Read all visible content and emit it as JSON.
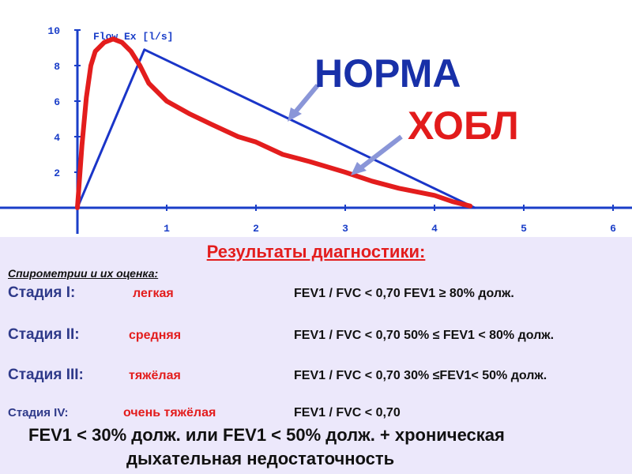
{
  "chart_data": {
    "type": "line",
    "title": "Flow Ex [l/s]",
    "xlabel": "",
    "ylabel": "",
    "xlim": [
      0,
      6
    ],
    "ylim": [
      0,
      10
    ],
    "x_ticks": [
      1,
      2,
      3,
      4,
      5,
      6
    ],
    "y_ticks": [
      2,
      4,
      6,
      8,
      10
    ],
    "grid": false,
    "series": [
      {
        "name": "НОРМА",
        "color": "#1a35c8",
        "x": [
          0,
          0.75,
          4.45
        ],
        "y": [
          0,
          8.9,
          0
        ]
      },
      {
        "name": "ХОБЛ",
        "color": "#e31d1d",
        "x": [
          0,
          0.05,
          0.1,
          0.15,
          0.2,
          0.3,
          0.4,
          0.5,
          0.6,
          0.7,
          0.8,
          1.0,
          1.25,
          1.5,
          1.8,
          2.0,
          2.3,
          2.6,
          3.0,
          3.3,
          3.6,
          4.0,
          4.2,
          4.4
        ],
        "y": [
          0,
          3.5,
          6.2,
          8.0,
          8.8,
          9.3,
          9.5,
          9.3,
          8.8,
          8.0,
          7.0,
          6.0,
          5.3,
          4.7,
          4.0,
          3.7,
          3.0,
          2.6,
          2.0,
          1.5,
          1.1,
          0.7,
          0.35,
          0.1
        ]
      }
    ]
  },
  "labels": {
    "norma": "НОРМА",
    "copd": "ХОБЛ"
  },
  "colors": {
    "norma_label": "#1830a8",
    "copd_label": "#e21b1b",
    "axis": "#1a3ec8",
    "arrow": "#8a96d8"
  },
  "info": {
    "heading": "Результаты диагностики:",
    "subheading": "Спирометрии и их оценка:",
    "stages": [
      {
        "stage": "Стадия I:",
        "severity": "легкая",
        "criteria": "FEV1 / FVC < 0,70   FEV1 ≥ 80% долж."
      },
      {
        "stage": "Стадия II:",
        "severity": "средняя",
        "criteria": "FEV1 / FVC < 0,70  50% ≤ FEV1 < 80% долж."
      },
      {
        "stage": "Стадия III:",
        "severity": "тяжёлая",
        "criteria": "FEV1 / FVC < 0,70 30% ≤FEV1< 50% долж."
      },
      {
        "stage": "Стадия IV:",
        "severity": "очень тяжёлая",
        "criteria": "FEV1 / FVC < 0,70"
      }
    ],
    "footer_line1": "FEV1 < 30% долж. или FEV1 < 50% долж. + хроническая",
    "footer_line2": "дыхательная недостаточность"
  }
}
